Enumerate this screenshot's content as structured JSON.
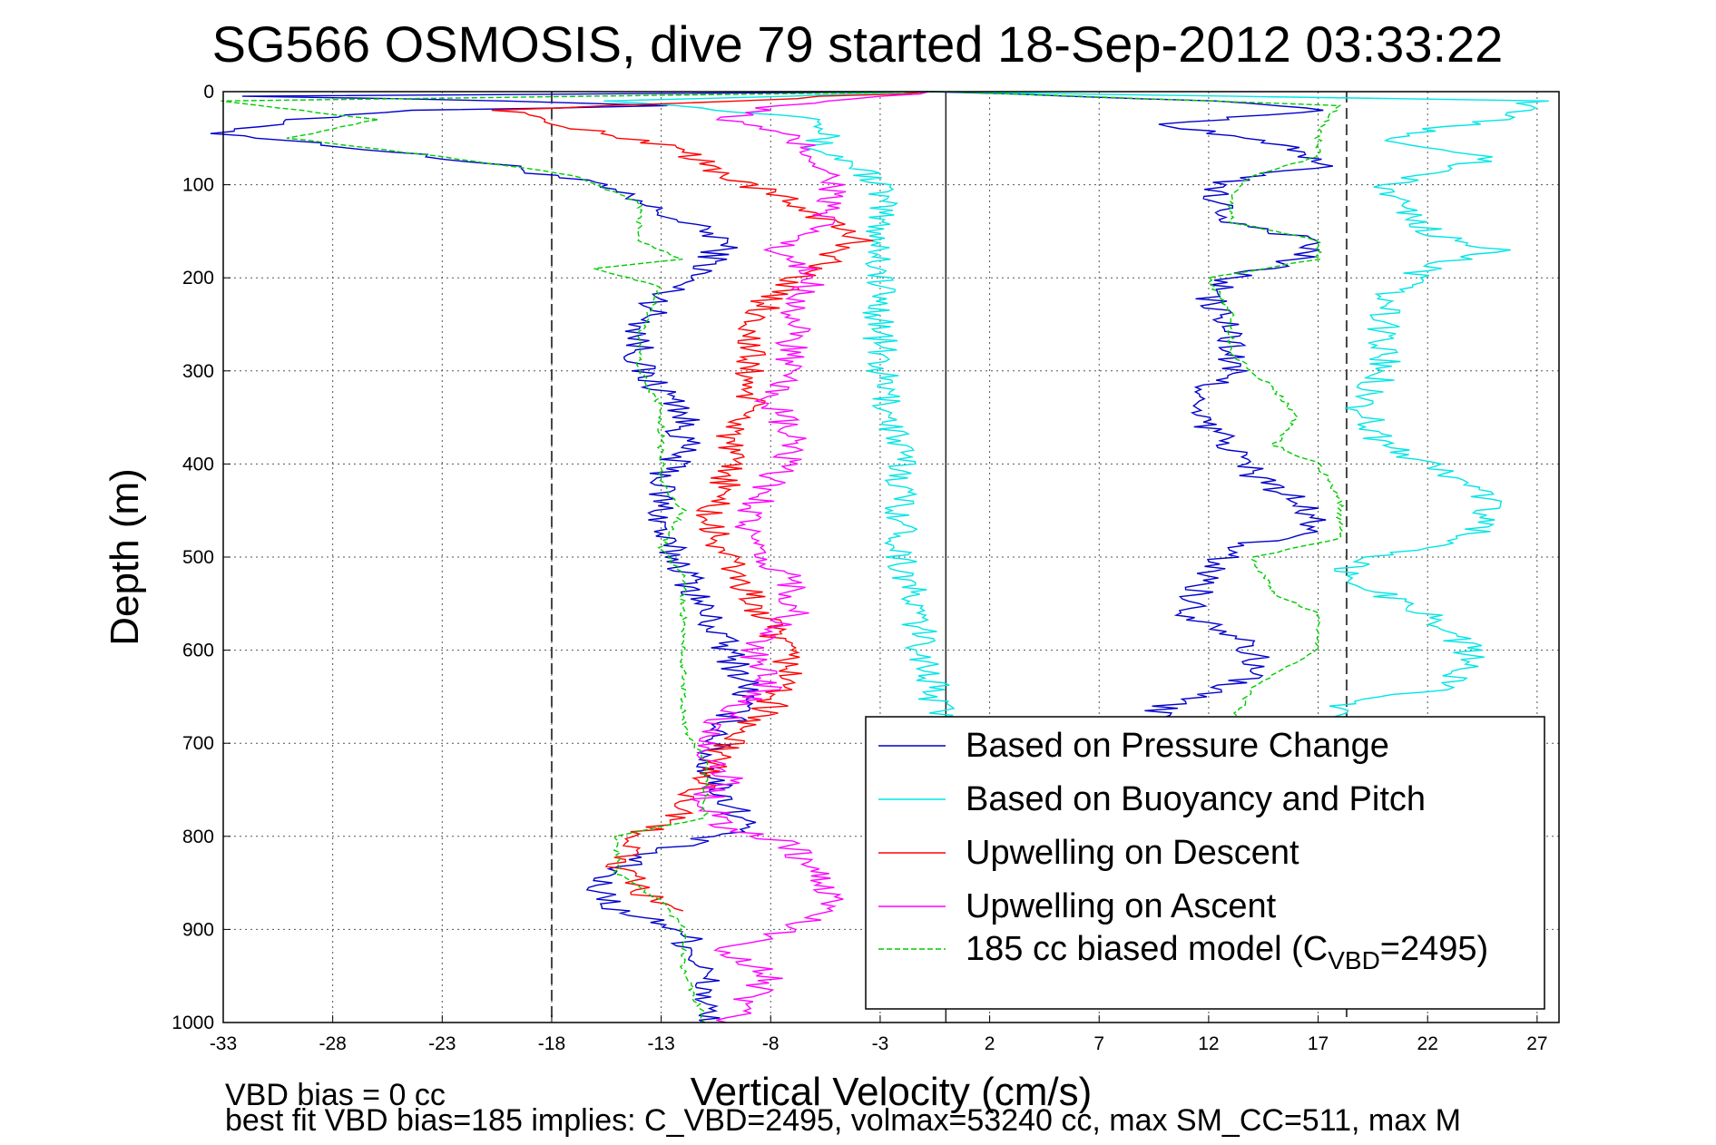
{
  "chart_data": {
    "type": "line",
    "title": "SG566 OSMOSIS, dive 79 started 18-Sep-2012 03:33:22",
    "xlabel": "Vertical Velocity (cm/s)",
    "ylabel": "Depth (m)",
    "xlim": [
      -33,
      28
    ],
    "ylim": [
      0,
      1000
    ],
    "y_reversed": true,
    "grid": true,
    "x_ticks": [
      -33,
      -28,
      -23,
      -18,
      -13,
      -8,
      -3,
      2,
      7,
      12,
      17,
      22,
      27
    ],
    "y_ticks": [
      0,
      100,
      200,
      300,
      400,
      500,
      600,
      700,
      800,
      900,
      1000
    ],
    "legend_position": "bottom-right",
    "reference_lines": {
      "dashed_x": [
        -18,
        18.3
      ],
      "solid_x": [
        0
      ]
    },
    "series": [
      {
        "name": "Based on Pressure Change",
        "color": "#0000cc",
        "style": "solid",
        "points": [
          [
            0,
            0
          ],
          [
            -32,
            5
          ],
          [
            -20,
            10
          ],
          [
            -12,
            15
          ],
          [
            -24,
            20
          ],
          [
            -30,
            30
          ],
          [
            -33,
            45
          ],
          [
            -27,
            60
          ],
          [
            -20,
            80
          ],
          [
            -16,
            100
          ],
          [
            -13,
            130
          ],
          [
            -10,
            160
          ],
          [
            -11,
            190
          ],
          [
            -13,
            220
          ],
          [
            -14,
            260
          ],
          [
            -14,
            300
          ],
          [
            -12,
            340
          ],
          [
            -12,
            380
          ],
          [
            -13,
            420
          ],
          [
            -13,
            460
          ],
          [
            -13,
            480
          ],
          [
            -12,
            510
          ],
          [
            -11,
            560
          ],
          [
            -10,
            600
          ],
          [
            -9,
            640
          ],
          [
            -10,
            680
          ],
          [
            -11,
            720
          ],
          [
            -10,
            760
          ],
          [
            -9,
            790
          ],
          [
            -14,
            820
          ],
          [
            -16,
            850
          ],
          [
            -15,
            880
          ],
          [
            -12,
            900
          ],
          [
            -11,
            950
          ],
          [
            -11,
            1000
          ]
        ],
        "points_ascent": [
          [
            0,
            0
          ],
          [
            12,
            10
          ],
          [
            17,
            20
          ],
          [
            10,
            35
          ],
          [
            15,
            55
          ],
          [
            17,
            80
          ],
          [
            12,
            100
          ],
          [
            13,
            140
          ],
          [
            17,
            160
          ],
          [
            16,
            180
          ],
          [
            13,
            200
          ],
          [
            12,
            220
          ],
          [
            13,
            260
          ],
          [
            13,
            300
          ],
          [
            11,
            340
          ],
          [
            13,
            380
          ],
          [
            14,
            410
          ],
          [
            16,
            440
          ],
          [
            17,
            470
          ],
          [
            13,
            490
          ],
          [
            12,
            520
          ],
          [
            11,
            560
          ],
          [
            14,
            590
          ],
          [
            14,
            630
          ],
          [
            10,
            660
          ],
          [
            9,
            700
          ]
        ]
      },
      {
        "name": "Based on Buoyancy and Pitch",
        "color": "#00e5e5",
        "style": "solid",
        "points": [
          [
            0,
            0
          ],
          [
            -15,
            10
          ],
          [
            -5,
            30
          ],
          [
            -6,
            60
          ],
          [
            -4,
            80
          ],
          [
            -3,
            100
          ],
          [
            -3,
            180
          ],
          [
            -3,
            300
          ],
          [
            -2,
            400
          ],
          [
            -2,
            500
          ],
          [
            -1,
            600
          ],
          [
            0,
            700
          ]
        ],
        "points_ascent": [
          [
            0,
            0
          ],
          [
            27,
            10
          ],
          [
            25,
            30
          ],
          [
            20,
            50
          ],
          [
            25,
            70
          ],
          [
            20,
            100
          ],
          [
            22,
            150
          ],
          [
            25,
            170
          ],
          [
            22,
            190
          ],
          [
            20,
            220
          ],
          [
            20,
            300
          ],
          [
            19,
            340
          ],
          [
            20,
            380
          ],
          [
            23,
            410
          ],
          [
            25,
            440
          ],
          [
            24,
            480
          ],
          [
            19,
            500
          ],
          [
            18,
            520
          ],
          [
            22,
            560
          ],
          [
            24,
            600
          ],
          [
            23,
            640
          ],
          [
            18,
            660
          ],
          [
            18,
            700
          ]
        ]
      },
      {
        "name": "Upwelling on Descent",
        "color": "#ff0000",
        "style": "solid",
        "points": [
          [
            0,
            0
          ],
          [
            -20,
            20
          ],
          [
            -17,
            40
          ],
          [
            -12,
            60
          ],
          [
            -11,
            80
          ],
          [
            -9,
            100
          ],
          [
            -6,
            130
          ],
          [
            -4,
            160
          ],
          [
            -6,
            190
          ],
          [
            -8,
            220
          ],
          [
            -9,
            260
          ],
          [
            -9,
            300
          ],
          [
            -9,
            340
          ],
          [
            -10,
            380
          ],
          [
            -10,
            420
          ],
          [
            -11,
            460
          ],
          [
            -10,
            500
          ],
          [
            -9,
            540
          ],
          [
            -8,
            580
          ],
          [
            -7,
            620
          ],
          [
            -8,
            660
          ],
          [
            -10,
            700
          ],
          [
            -11,
            740
          ],
          [
            -12,
            770
          ],
          [
            -14,
            800
          ],
          [
            -15,
            830
          ],
          [
            -14,
            860
          ],
          [
            -12,
            880
          ]
        ]
      },
      {
        "name": "Upwelling on Ascent",
        "color": "#ff00ff",
        "style": "solid",
        "points": [
          [
            0,
            0
          ],
          [
            -8,
            15
          ],
          [
            -10,
            30
          ],
          [
            -7,
            50
          ],
          [
            -6,
            70
          ],
          [
            -5,
            100
          ],
          [
            -6,
            150
          ],
          [
            -8,
            170
          ],
          [
            -6,
            200
          ],
          [
            -7,
            240
          ],
          [
            -7,
            280
          ],
          [
            -8,
            330
          ],
          [
            -7,
            380
          ],
          [
            -8,
            420
          ],
          [
            -9,
            460
          ],
          [
            -9,
            500
          ],
          [
            -7,
            520
          ],
          [
            -7,
            560
          ],
          [
            -9,
            600
          ],
          [
            -8,
            640
          ],
          [
            -10,
            670
          ],
          [
            -11,
            700
          ],
          [
            -10,
            740
          ],
          [
            -11,
            760
          ],
          [
            -10,
            790
          ],
          [
            -7,
            810
          ],
          [
            -6,
            840
          ],
          [
            -5,
            870
          ],
          [
            -7,
            900
          ],
          [
            -10,
            920
          ],
          [
            -8,
            950
          ],
          [
            -10,
            1000
          ]
        ]
      },
      {
        "name": "185 cc biased model (CVBD=2495)",
        "color": "#00cc00",
        "style": "dashed",
        "points": [
          [
            0,
            0
          ],
          [
            -33,
            10
          ],
          [
            -26,
            30
          ],
          [
            -30,
            50
          ],
          [
            -23,
            70
          ],
          [
            -17,
            90
          ],
          [
            -14,
            120
          ],
          [
            -14,
            160
          ],
          [
            -12,
            180
          ],
          [
            -16,
            190
          ],
          [
            -13,
            210
          ],
          [
            -14,
            260
          ],
          [
            -14,
            300
          ],
          [
            -13,
            340
          ],
          [
            -13,
            380
          ],
          [
            -13,
            420
          ],
          [
            -12,
            450
          ],
          [
            -13,
            490
          ],
          [
            -12,
            520
          ],
          [
            -12,
            560
          ],
          [
            -12,
            600
          ],
          [
            -12,
            640
          ],
          [
            -12,
            680
          ],
          [
            -11,
            720
          ],
          [
            -11,
            780
          ],
          [
            -15,
            800
          ],
          [
            -15,
            840
          ],
          [
            -13,
            870
          ],
          [
            -12,
            900
          ],
          [
            -12,
            940
          ],
          [
            -11,
            1000
          ]
        ],
        "points_ascent": [
          [
            0,
            0
          ],
          [
            18,
            15
          ],
          [
            17,
            40
          ],
          [
            17,
            70
          ],
          [
            14,
            90
          ],
          [
            13,
            110
          ],
          [
            13,
            140
          ],
          [
            17,
            160
          ],
          [
            17,
            180
          ],
          [
            12,
            200
          ],
          [
            13,
            240
          ],
          [
            13,
            280
          ],
          [
            15,
            320
          ],
          [
            16,
            350
          ],
          [
            15,
            380
          ],
          [
            17,
            400
          ],
          [
            18,
            440
          ],
          [
            18,
            480
          ],
          [
            14,
            500
          ],
          [
            15,
            540
          ],
          [
            17,
            560
          ],
          [
            17,
            600
          ],
          [
            14,
            640
          ],
          [
            13,
            680
          ],
          [
            12,
            700
          ]
        ]
      }
    ]
  },
  "legend": {
    "entries": [
      {
        "label": "Based on Pressure Change"
      },
      {
        "label": "Based on Buoyancy and Pitch"
      },
      {
        "label": "Upwelling on Descent"
      },
      {
        "label": "Upwelling on Ascent"
      },
      {
        "label_main": "185 cc biased model (C",
        "label_sub": "VBD",
        "label_tail": "=2495)"
      }
    ]
  },
  "footer": {
    "line1": "VBD bias = 0 cc",
    "line2": "best fit VBD bias=185 implies: C_VBD=2495, volmax=53240 cc, max SM_CC=511, max M"
  }
}
